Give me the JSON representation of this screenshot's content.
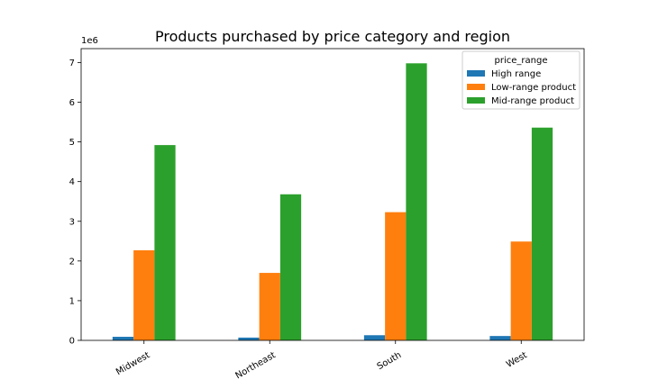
{
  "chart_data": {
    "type": "bar",
    "title": "Products purchased by price category and region",
    "xlabel": "",
    "ylabel": "",
    "categories": [
      "Midwest",
      "Northeast",
      "South",
      "West"
    ],
    "series": [
      {
        "name": "High range",
        "color": "#1f77b4",
        "values": [
          90000,
          70000,
          130000,
          110000
        ]
      },
      {
        "name": "Low-range product",
        "color": "#ff7f0e",
        "values": [
          2270000,
          1700000,
          3230000,
          2490000
        ]
      },
      {
        "name": "Mid-range product",
        "color": "#2ca02c",
        "values": [
          4920000,
          3680000,
          6980000,
          5360000
        ]
      }
    ],
    "ylim": [
      0,
      7350000
    ],
    "y_ticks": [
      0,
      1000000,
      2000000,
      3000000,
      4000000,
      5000000,
      6000000,
      7000000
    ],
    "y_tick_labels": [
      "0",
      "1",
      "2",
      "3",
      "4",
      "5",
      "6",
      "7"
    ],
    "y_offset_label": "1e6",
    "legend_title": "price_range",
    "legend_placement": "upper-right",
    "grid": false
  }
}
